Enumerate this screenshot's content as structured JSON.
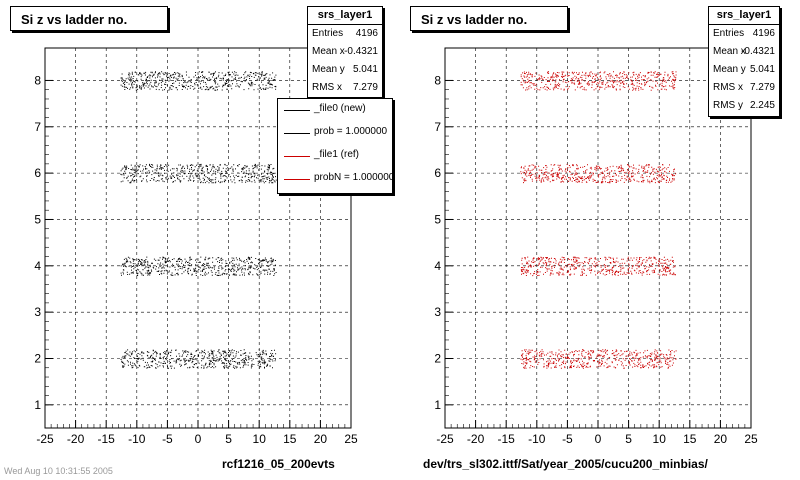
{
  "colors": {
    "black": "#000000",
    "red": "#cc0000",
    "frame": "#000000",
    "grid": "#000000"
  },
  "left": {
    "title": "Si z vs ladder no.",
    "stats": {
      "name": "srs_layer1",
      "rows": [
        {
          "label": "Entries",
          "value": "4196"
        },
        {
          "label": "Mean x",
          "value": "-0.4321"
        },
        {
          "label": "Mean y",
          "value": "5.041"
        },
        {
          "label": "RMS x",
          "value": "7.279"
        }
      ]
    },
    "legend": [
      {
        "text": "_file0 (new)",
        "color": "#000000"
      },
      {
        "text": "prob = 1.000000",
        "color": "#000000"
      },
      {
        "text": "_file1 (ref)",
        "color": "#cc0000"
      },
      {
        "text": "probN = 1.000000",
        "color": "#cc0000"
      }
    ],
    "xlabel": "rcf1216_05_200evts"
  },
  "right": {
    "title": "Si z vs ladder no.",
    "stats": {
      "name": "srs_layer1",
      "rows": [
        {
          "label": "Entries",
          "value": "4196"
        },
        {
          "label": "Mean x",
          "value": "-0.4321"
        },
        {
          "label": "Mean y",
          "value": "5.041"
        },
        {
          "label": "RMS x",
          "value": "7.279"
        },
        {
          "label": "RMS y",
          "value": "2.245"
        }
      ]
    },
    "xlabel": "dev/trs_sl302.ittf/Sat/year_2005/cucu200_minbias/"
  },
  "footer": "Wed Aug 10 10:31:55 2005",
  "chart_data": [
    {
      "type": "scatter",
      "title": "Si z vs ladder no.",
      "xlabel": "rcf1216_05_200evts",
      "ylabel": "",
      "xlim": [
        -25,
        25
      ],
      "ylim": [
        0.5,
        8.7
      ],
      "xticks": [
        -25,
        -20,
        -15,
        -10,
        -5,
        0,
        5,
        10,
        15,
        20,
        25
      ],
      "yticks": [
        1,
        2,
        3,
        4,
        5,
        6,
        7,
        8
      ],
      "grid": true,
      "legend_position": "top-right",
      "series": [
        {
          "name": "_file0 (new)",
          "color": "#000000",
          "bands": [
            {
              "y": 2,
              "x_range": [
                -12.7,
                12.7
              ],
              "y_halfwidth": 0.2
            },
            {
              "y": 4,
              "x_range": [
                -12.7,
                12.7
              ],
              "y_halfwidth": 0.2
            },
            {
              "y": 6,
              "x_range": [
                -12.7,
                12.7
              ],
              "y_halfwidth": 0.2
            },
            {
              "y": 8,
              "x_range": [
                -12.7,
                12.7
              ],
              "y_halfwidth": 0.2
            }
          ]
        }
      ],
      "stats": {
        "Entries": 4196,
        "Mean x": -0.4321,
        "Mean y": 5.041,
        "RMS x": 7.279
      }
    },
    {
      "type": "scatter",
      "title": "Si z vs ladder no.",
      "xlabel": "dev/trs_sl302.ittf/Sat/year_2005/cucu200_minbias/",
      "ylabel": "",
      "xlim": [
        -25,
        25
      ],
      "ylim": [
        0.5,
        8.7
      ],
      "xticks": [
        -25,
        -20,
        -15,
        -10,
        -5,
        0,
        5,
        10,
        15,
        20,
        25
      ],
      "yticks": [
        1,
        2,
        3,
        4,
        5,
        6,
        7,
        8
      ],
      "grid": true,
      "series": [
        {
          "name": "_file1 (ref)",
          "color": "#cc0000",
          "bands": [
            {
              "y": 2,
              "x_range": [
                -12.7,
                12.7
              ],
              "y_halfwidth": 0.2
            },
            {
              "y": 4,
              "x_range": [
                -12.7,
                12.7
              ],
              "y_halfwidth": 0.2
            },
            {
              "y": 6,
              "x_range": [
                -12.7,
                12.7
              ],
              "y_halfwidth": 0.2
            },
            {
              "y": 8,
              "x_range": [
                -12.7,
                12.7
              ],
              "y_halfwidth": 0.2
            }
          ]
        }
      ],
      "stats": {
        "Entries": 4196,
        "Mean x": -0.4321,
        "Mean y": 5.041,
        "RMS x": 7.279,
        "RMS y": 2.245
      }
    }
  ]
}
